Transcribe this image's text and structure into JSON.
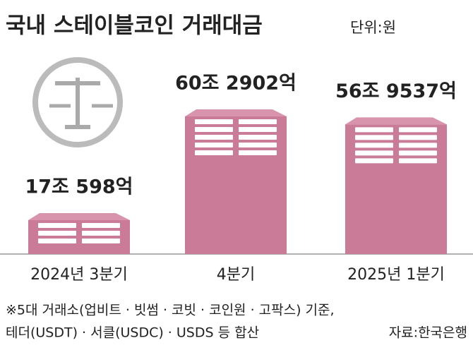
{
  "chart_data": {
    "type": "bar",
    "title": "국내 스테이블코인 거래대금",
    "unit": "단위:원",
    "categories": [
      "2024년 3분기",
      "4분기",
      "2025년 1분기"
    ],
    "values": [
      170598,
      602902,
      569537
    ],
    "value_labels": [
      "17조 598억",
      "60조 2902억",
      "56조 9537억"
    ],
    "color": "#c97b97",
    "footnote": [
      "※5대 거래소(업비트 · 빗썸 · 코빗 · 코인원 · 고팍스) 기준,",
      "테더(USDT) · 서클(USDC) · USDS 등 합산"
    ],
    "source": "자료:한국은행"
  }
}
